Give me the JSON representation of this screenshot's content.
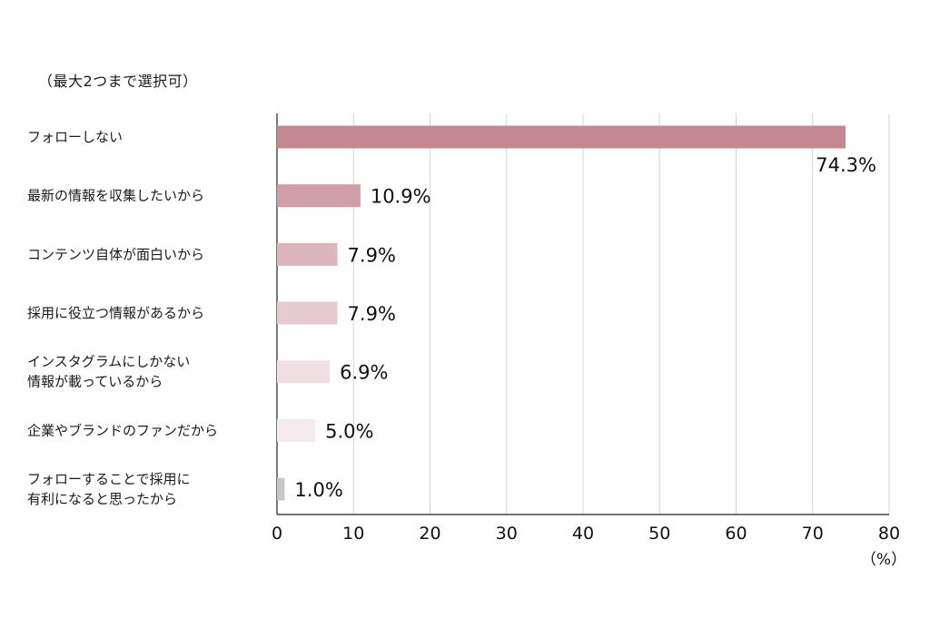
{
  "note": "（最大2つまで選択可）",
  "chart_data": {
    "type": "bar",
    "orientation": "horizontal",
    "categories": [
      [
        "フォローしない"
      ],
      [
        "最新の情報を収集したいから"
      ],
      [
        "コンテンツ自体が面白いから"
      ],
      [
        "採用に役立つ情報があるから"
      ],
      [
        "インスタグラムにしかない",
        "情報が載っているから"
      ],
      [
        "企業やブランドのファンだから"
      ],
      [
        "フォローすることで採用に",
        "有利になると思ったから"
      ]
    ],
    "values": [
      74.3,
      10.9,
      7.9,
      7.9,
      6.9,
      5.0,
      1.0
    ],
    "value_labels": [
      "74.3%",
      "10.9%",
      "7.9%",
      "7.9%",
      "6.9%",
      "5.0%",
      "1.0%"
    ],
    "colors": [
      "#c48893",
      "#cf9ea7",
      "#dbb5bb",
      "#e5cacf",
      "#efdfe2",
      "#f4e9eb",
      "#c8c8c8"
    ],
    "xlim": [
      0,
      80
    ],
    "xticks": [
      0,
      10,
      20,
      30,
      40,
      50,
      60,
      70,
      80
    ],
    "xlabel": "（%）",
    "grid": true
  }
}
